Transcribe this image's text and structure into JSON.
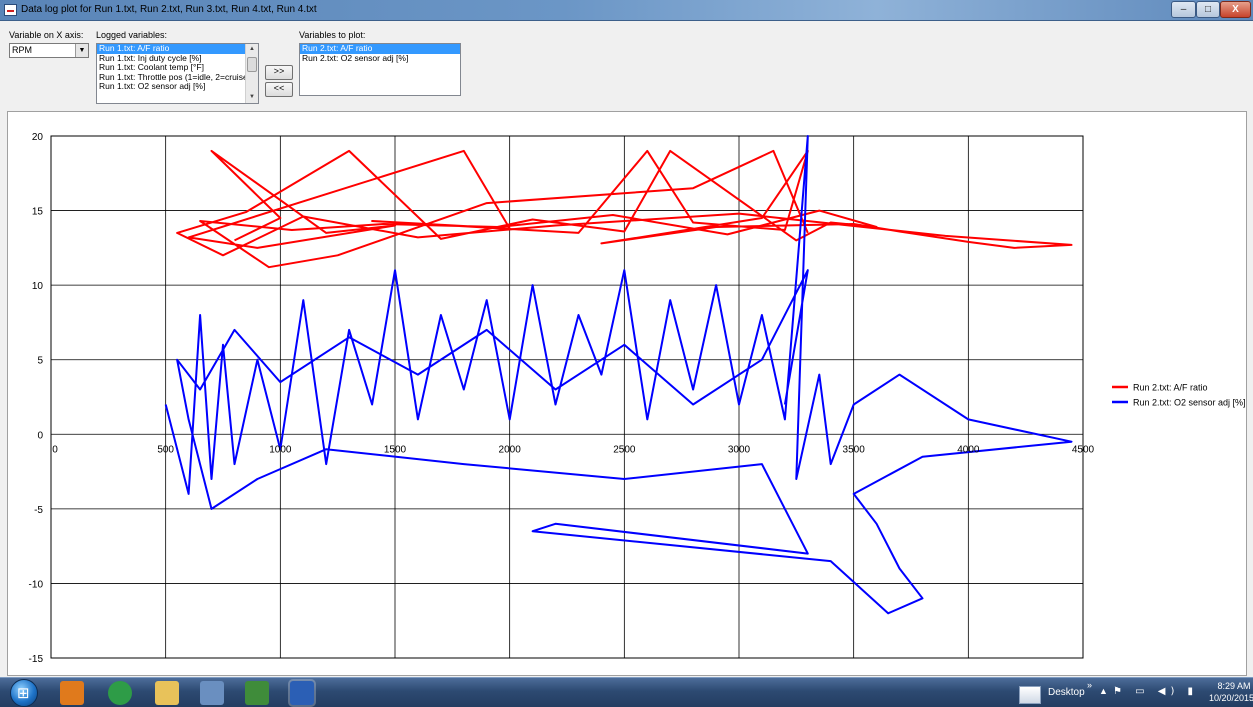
{
  "window": {
    "title": "Data log plot for Run 1.txt, Run 2.txt, Run 3.txt, Run 4.txt, Run 4.txt",
    "minimize": "–",
    "maximize": "□",
    "close": "X"
  },
  "controls": {
    "xaxis_label": "Variable on X axis:",
    "xaxis_value": "RPM",
    "logged_label": "Logged variables:",
    "logged_items": [
      "Run 1.txt: A/F ratio",
      "Run 1.txt: Inj duty cycle [%]",
      "Run 1.txt: Coolant temp [°F]",
      "Run 1.txt: Throttle pos (1=idle, 2=cruise",
      "Run 1.txt: O2 sensor adj [%]"
    ],
    "logged_selected": 0,
    "add_button": ">>",
    "remove_button": "<<",
    "plot_label": "Variables to plot:",
    "plot_items": [
      "Run 2.txt: A/F ratio",
      "Run 2.txt: O2 sensor adj [%]"
    ],
    "plot_selected": 0
  },
  "chart_data": {
    "type": "line",
    "xlim": [
      0,
      4500
    ],
    "ylim": [
      -15,
      20
    ],
    "x_ticks": [
      500,
      1000,
      1500,
      2000,
      2500,
      3000,
      3500,
      4000,
      4500
    ],
    "x_tick_labels": [
      "500",
      "1000",
      "1500",
      "2000",
      "2500",
      "3000",
      "3500",
      "4000",
      "4500"
    ],
    "y_ticks": [
      20,
      15,
      10,
      5,
      0,
      -5,
      -10,
      -15
    ],
    "grid": true,
    "legend_position": "right",
    "series": [
      {
        "name": "Run 2.txt: A/F ratio",
        "color": "#ff0000",
        "points": [
          [
            800,
            13
          ],
          [
            1000,
            14.5
          ],
          [
            700,
            19
          ],
          [
            1200,
            13.5
          ],
          [
            1500,
            14
          ],
          [
            900,
            12.5
          ],
          [
            600,
            13.2
          ],
          [
            1800,
            19
          ],
          [
            2000,
            13.8
          ],
          [
            1400,
            14.3
          ],
          [
            2300,
            13.5
          ],
          [
            2600,
            19
          ],
          [
            2800,
            14.2
          ],
          [
            3200,
            13.7
          ],
          [
            3300,
            19
          ],
          [
            3100,
            14.5
          ],
          [
            2400,
            12.8
          ],
          [
            2900,
            13.9
          ],
          [
            3500,
            14.1
          ],
          [
            3700,
            13.6
          ],
          [
            4000,
            12.9
          ],
          [
            4200,
            12.5
          ],
          [
            4450,
            12.7
          ],
          [
            3900,
            13.3
          ],
          [
            3000,
            14.8
          ],
          [
            2200,
            14.0
          ],
          [
            1600,
            13.2
          ],
          [
            1100,
            14.6
          ],
          [
            750,
            12.0
          ],
          [
            550,
            13.5
          ],
          [
            850,
            14.9
          ],
          [
            1300,
            19
          ],
          [
            1700,
            13.1
          ],
          [
            2100,
            14.4
          ],
          [
            2500,
            13.6
          ],
          [
            2700,
            19
          ],
          [
            3250,
            13.0
          ],
          [
            3400,
            14.2
          ],
          [
            3600,
            13.9
          ],
          [
            3350,
            15
          ],
          [
            2950,
            13.4
          ],
          [
            2450,
            14.7
          ],
          [
            1950,
            13.9
          ],
          [
            1450,
            14.1
          ],
          [
            1050,
            13.7
          ],
          [
            650,
            14.3
          ],
          [
            950,
            11.2
          ],
          [
            1250,
            12.0
          ],
          [
            1900,
            15.5
          ],
          [
            2800,
            16.5
          ],
          [
            3150,
            19
          ],
          [
            3300,
            13.5
          ]
        ]
      },
      {
        "name": "Run 2.txt: O2 sensor adj [%]",
        "color": "#0000ff",
        "points": [
          [
            500,
            2
          ],
          [
            600,
            -4
          ],
          [
            650,
            8
          ],
          [
            700,
            -3
          ],
          [
            750,
            6
          ],
          [
            800,
            -2
          ],
          [
            900,
            5
          ],
          [
            1000,
            -1
          ],
          [
            1100,
            9
          ],
          [
            1200,
            -2
          ],
          [
            1300,
            7
          ],
          [
            1400,
            2
          ],
          [
            1500,
            11
          ],
          [
            1600,
            1
          ],
          [
            1700,
            8
          ],
          [
            1800,
            3
          ],
          [
            1900,
            9
          ],
          [
            2000,
            1
          ],
          [
            2100,
            10
          ],
          [
            2200,
            2
          ],
          [
            2300,
            8
          ],
          [
            2400,
            4
          ],
          [
            2500,
            11
          ],
          [
            2600,
            1
          ],
          [
            2700,
            9
          ],
          [
            2800,
            3
          ],
          [
            2900,
            10
          ],
          [
            3000,
            2
          ],
          [
            3100,
            8
          ],
          [
            3200,
            1
          ],
          [
            3300,
            20
          ],
          [
            3250,
            -3
          ],
          [
            3350,
            4
          ],
          [
            3400,
            -2
          ],
          [
            3500,
            2
          ],
          [
            3700,
            4
          ],
          [
            4000,
            1
          ],
          [
            4450,
            -0.5
          ],
          [
            3800,
            -1.5
          ],
          [
            3500,
            -4
          ],
          [
            3600,
            -6
          ],
          [
            3700,
            -9
          ],
          [
            3800,
            -11
          ],
          [
            3650,
            -12
          ],
          [
            3400,
            -8.5
          ],
          [
            2100,
            -6.5
          ],
          [
            2200,
            -6
          ],
          [
            3300,
            -8
          ],
          [
            3100,
            -2
          ],
          [
            2500,
            -3
          ],
          [
            1800,
            -2
          ],
          [
            1200,
            -1
          ],
          [
            900,
            -3
          ],
          [
            700,
            -5
          ],
          [
            600,
            1
          ],
          [
            550,
            5
          ],
          [
            650,
            3
          ],
          [
            800,
            7
          ],
          [
            1000,
            3.5
          ],
          [
            1300,
            6.5
          ],
          [
            1600,
            4
          ],
          [
            1900,
            7
          ],
          [
            2200,
            3
          ],
          [
            2500,
            6
          ],
          [
            2800,
            2
          ],
          [
            3100,
            5
          ],
          [
            3300,
            11
          ],
          [
            3200,
            2
          ]
        ]
      }
    ]
  },
  "taskbar": {
    "desktop_label": "Desktop",
    "desktop_chevron": "»",
    "tray_chevron": "▲",
    "tray_icons": "⚑ ▭ ◀) ▮",
    "time": "8:29 AM",
    "date": "10/20/2015",
    "apps": [
      {
        "icon": "media-player-icon",
        "color": "#e07a1c"
      },
      {
        "icon": "chrome-icon",
        "color": "#2e9c47"
      },
      {
        "icon": "file-explorer-icon",
        "color": "#e8c25a"
      },
      {
        "icon": "network-app-icon",
        "color": "#6a8fc0"
      },
      {
        "icon": "car-app-icon",
        "color": "#3f8c3a"
      },
      {
        "icon": "word-icon",
        "color": "#2b5fb5"
      }
    ]
  }
}
